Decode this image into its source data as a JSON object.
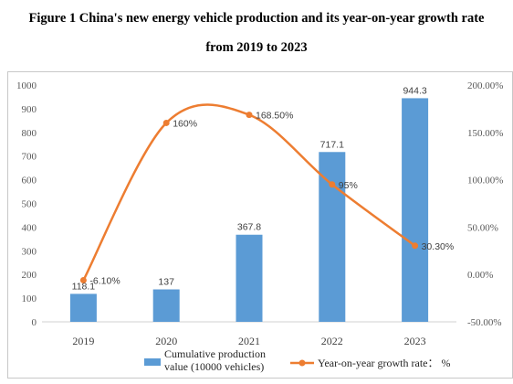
{
  "figure": {
    "title_line1": "Figure 1 China's new energy vehicle production and its year-on-year growth rate",
    "title_line2": "from 2019 to 2023"
  },
  "chart_data": {
    "type": "bar+line",
    "categories": [
      "2019",
      "2020",
      "2021",
      "2022",
      "2023"
    ],
    "series": [
      {
        "name": "Cumulative production value (10000 vehicles)",
        "type": "bar",
        "axis": "left",
        "values": [
          118.1,
          137,
          367.8,
          717.1,
          944.3
        ],
        "labels": [
          "118.1",
          "137",
          "367.8",
          "717.1",
          "944.3"
        ],
        "color": "#5b9bd5"
      },
      {
        "name": "Year-on-year growth rate： %",
        "type": "line",
        "axis": "right",
        "smooth": true,
        "values": [
          -6.1,
          160,
          168.5,
          95,
          30.3
        ],
        "labels": [
          "-6.10%",
          "160%",
          "168.50%",
          "95%",
          "30.30%"
        ],
        "color": "#ed7d31"
      }
    ],
    "ylim_left": [
      0,
      1000
    ],
    "yticks_left": [
      "0",
      "100",
      "200",
      "300",
      "400",
      "500",
      "600",
      "700",
      "800",
      "900",
      "1000"
    ],
    "ylim_right": [
      -50,
      200
    ],
    "yticks_right": [
      "-50.00%",
      "0.00%",
      "50.00%",
      "100.00%",
      "150.00%",
      "200.00%"
    ],
    "grid": false,
    "legend": {
      "position": "bottom",
      "bar_label_line1": "Cumulative   production",
      "bar_label_line2": "value (10000 vehicles)",
      "line_label": "Year-on-year growth rate： %"
    }
  }
}
